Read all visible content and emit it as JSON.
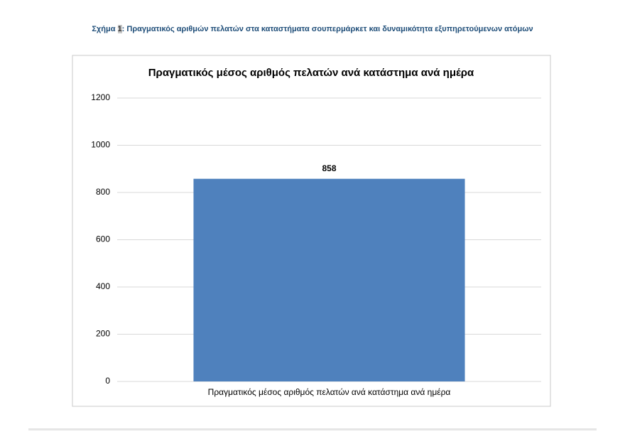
{
  "chart_data": {
    "type": "bar",
    "caption": {
      "label": "Σχήμα",
      "number": "1",
      "text": ": Πραγματικός αριθμών πελατών στα καταστήματα σουπερμάρκετ και δυναμικότητα εξυπηρετούμενων ατόμων"
    },
    "title": "Πραγματικός μέσος αριθμός πελατών ανά κατάστημα ανά ημέρα",
    "categories": [
      "Πραγματικός μέσος αριθμός πελατών ανά κατάστημα ανά ημέρα"
    ],
    "values": [
      858
    ],
    "color": "#4f81bd",
    "ylim": [
      0,
      1200
    ],
    "yticks": [
      0,
      200,
      400,
      600,
      800,
      1000,
      1200
    ],
    "grid": true
  }
}
